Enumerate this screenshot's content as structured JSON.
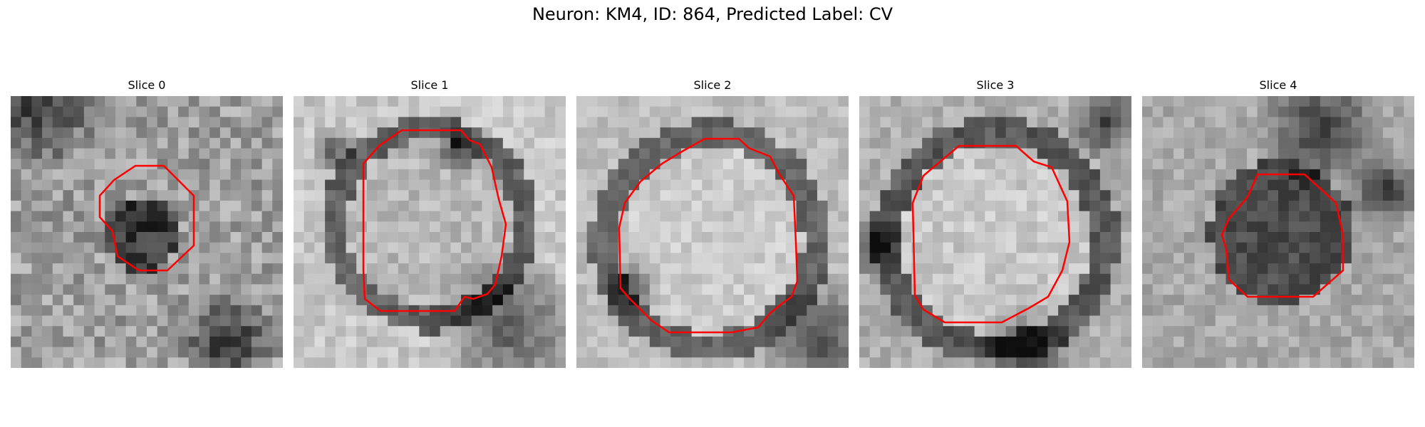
{
  "figure": {
    "title": "Neuron: KM4, ID: 864, Predicted Label: CV"
  },
  "panels": [
    {
      "title": "Slice 0",
      "contour_color": "#ff0000"
    },
    {
      "title": "Slice 1",
      "contour_color": "#ff0000"
    },
    {
      "title": "Slice 2",
      "contour_color": "#ff0000"
    },
    {
      "title": "Slice 3",
      "contour_color": "#ff0000"
    },
    {
      "title": "Slice 4",
      "contour_color": "#ff0000"
    }
  ]
}
